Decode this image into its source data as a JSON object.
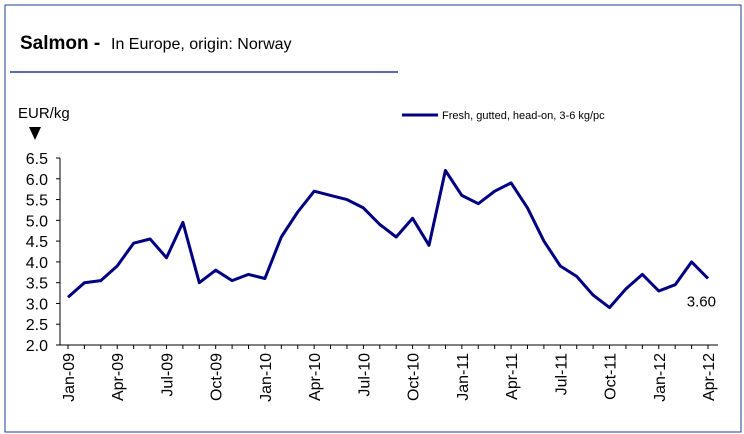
{
  "chart_data": {
    "type": "line",
    "title": "Salmon -",
    "subtitle": "In Europe, origin: Norway",
    "y_label": "EUR/kg",
    "categories": [
      "Jan-09",
      null,
      null,
      "Apr-09",
      null,
      null,
      "Jul-09",
      null,
      null,
      "Oct-09",
      null,
      null,
      "Jan-10",
      null,
      null,
      "Apr-10",
      null,
      null,
      "Jul-10",
      null,
      null,
      "Oct-10",
      null,
      null,
      "Jan-11",
      null,
      null,
      "Apr-11",
      null,
      null,
      "Jul-11",
      null,
      null,
      "Oct-11",
      null,
      null,
      "Jan-12",
      null,
      null,
      "Apr-12"
    ],
    "series": [
      {
        "name": "Fresh, gutted, head-on, 3-6 kg/pc",
        "color": "#000080",
        "values": [
          3.15,
          3.5,
          3.55,
          3.9,
          4.45,
          4.55,
          4.1,
          4.95,
          3.5,
          3.8,
          3.55,
          3.7,
          3.6,
          4.6,
          5.2,
          5.7,
          5.6,
          5.5,
          5.3,
          4.9,
          4.6,
          5.05,
          4.4,
          6.2,
          5.6,
          5.4,
          5.7,
          5.9,
          5.3,
          4.5,
          3.9,
          3.65,
          3.2,
          2.9,
          3.35,
          3.7,
          3.3,
          3.45,
          4.0,
          3.6
        ],
        "value_labels": [
          null,
          null,
          null,
          null,
          null,
          null,
          null,
          null,
          null,
          null,
          null,
          null,
          null,
          null,
          null,
          null,
          null,
          null,
          null,
          null,
          null,
          null,
          null,
          null,
          null,
          null,
          null,
          null,
          null,
          null,
          null,
          null,
          null,
          null,
          null,
          null,
          null,
          null,
          null,
          "3.60"
        ]
      }
    ],
    "ylim": [
      2.0,
      6.5
    ],
    "yticks": [
      {
        "value": 2.0,
        "label": "2.0"
      },
      2.5,
      {
        "value": 3.0,
        "label": "3.0"
      },
      3.5,
      {
        "value": 4.0,
        "label": "4.0"
      },
      4.5,
      {
        "value": 5.0,
        "label": "5.0"
      },
      5.5,
      {
        "value": 6.0,
        "label": "6.0"
      },
      6.5
    ],
    "legend": "top-right"
  }
}
